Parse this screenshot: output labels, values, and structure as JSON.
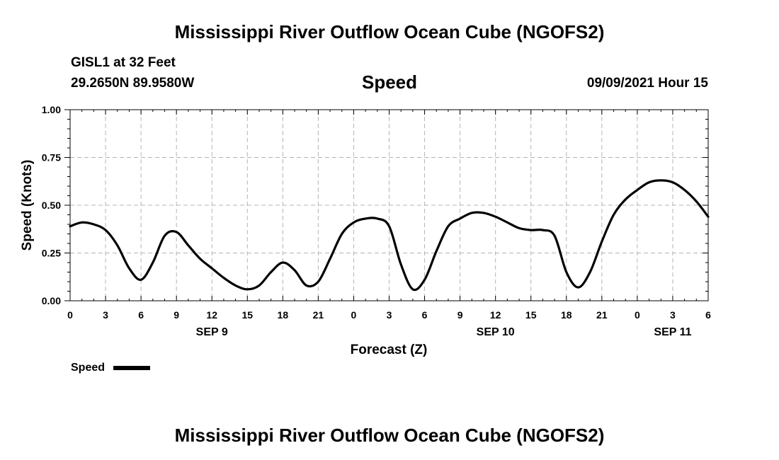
{
  "header": {
    "title": "Mississippi River Outflow Ocean Cube (NGOFS2)",
    "station": "GISL1 at 32 Feet",
    "coordinates": "29.2650N  89.9580W",
    "parameter": "Speed",
    "run_time": "09/09/2021 Hour 15"
  },
  "footer": {
    "title": "Mississippi River Outflow Ocean Cube (NGOFS2)"
  },
  "chart_data": {
    "type": "line",
    "title": "Speed",
    "xlabel": "Forecast (Z)",
    "ylabel": "Speed (Knots)",
    "ylim": [
      0,
      1.0
    ],
    "xlim": [
      0,
      54
    ],
    "grid": true,
    "yticks": [
      0.0,
      0.25,
      0.5,
      0.75,
      1.0
    ],
    "ytick_labels": [
      "0.00",
      "0.25",
      "0.50",
      "0.75",
      "1.00"
    ],
    "xticks": [
      0,
      3,
      6,
      9,
      12,
      15,
      18,
      21,
      24,
      27,
      30,
      33,
      36,
      39,
      42,
      45,
      48,
      51,
      54
    ],
    "xtick_labels": [
      "0",
      "3",
      "6",
      "9",
      "12",
      "15",
      "18",
      "21",
      "0",
      "3",
      "6",
      "9",
      "12",
      "15",
      "18",
      "21",
      "0",
      "3",
      "6"
    ],
    "day_labels": [
      {
        "label": "SEP 9",
        "hour": 12
      },
      {
        "label": "SEP 10",
        "hour": 36
      },
      {
        "label": "SEP 11",
        "hour": 51
      }
    ],
    "legend": {
      "label": "Speed",
      "placement": "bottom-left"
    },
    "series": [
      {
        "name": "Speed",
        "x": [
          0,
          1,
          2,
          3,
          4,
          5,
          6,
          7,
          8,
          9,
          10,
          11,
          12,
          13,
          14,
          15,
          16,
          17,
          18,
          19,
          20,
          21,
          22,
          23,
          24,
          25,
          26,
          27,
          28,
          29,
          30,
          31,
          32,
          33,
          34,
          35,
          36,
          37,
          38,
          39,
          40,
          41,
          42,
          43,
          44,
          45,
          46,
          47,
          48,
          49,
          50,
          51,
          52,
          53,
          54
        ],
        "values": [
          0.39,
          0.41,
          0.4,
          0.37,
          0.29,
          0.17,
          0.11,
          0.2,
          0.34,
          0.36,
          0.29,
          0.22,
          0.17,
          0.12,
          0.08,
          0.06,
          0.08,
          0.15,
          0.2,
          0.16,
          0.08,
          0.1,
          0.22,
          0.35,
          0.41,
          0.43,
          0.43,
          0.39,
          0.19,
          0.06,
          0.11,
          0.26,
          0.39,
          0.43,
          0.46,
          0.46,
          0.44,
          0.41,
          0.38,
          0.37,
          0.37,
          0.34,
          0.15,
          0.07,
          0.15,
          0.31,
          0.45,
          0.53,
          0.58,
          0.62,
          0.63,
          0.62,
          0.58,
          0.52,
          0.44
        ]
      }
    ]
  }
}
